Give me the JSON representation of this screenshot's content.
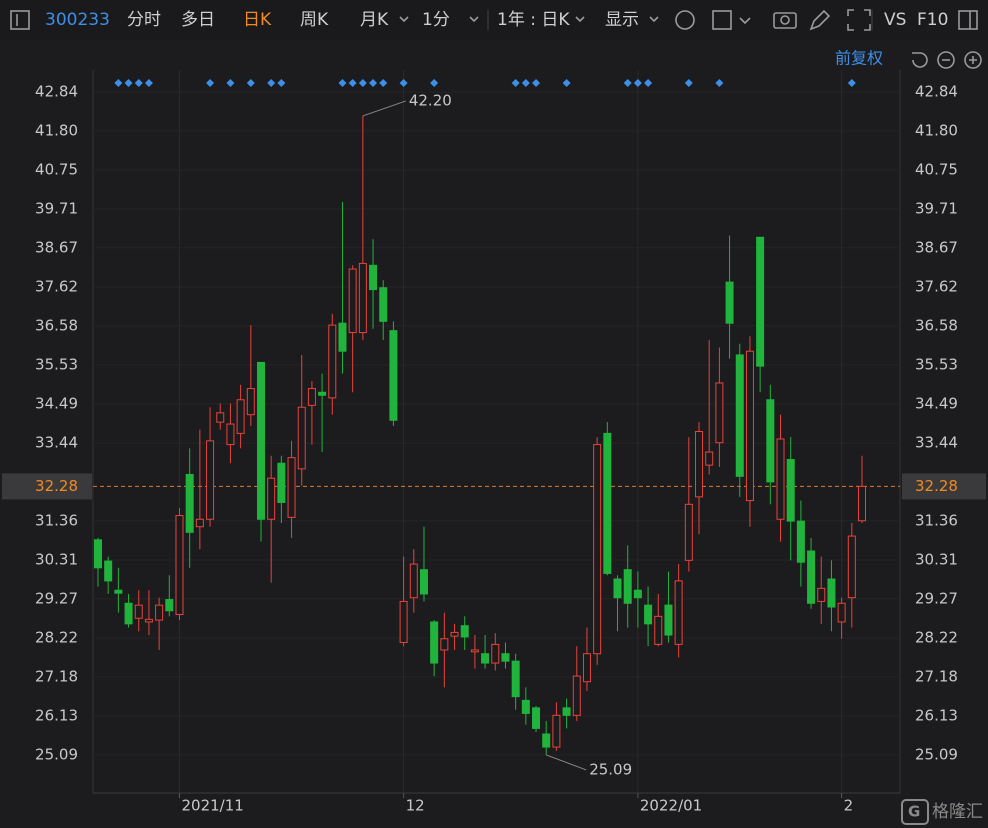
{
  "toolbar": {
    "code": "300233",
    "tabs": [
      "分时",
      "多日",
      "日K",
      "周K",
      "月K",
      "1分",
      "1年 : 日K",
      "显示"
    ],
    "active_tab": 2,
    "right": [
      "VS",
      "F10"
    ],
    "adjust": "前复权",
    "watermark": "格隆汇"
  },
  "chart_data": {
    "type": "candlestick",
    "categories": [
      null,
      null,
      null,
      null,
      null,
      null,
      null,
      null,
      "2021/11",
      null,
      null,
      null,
      null,
      null,
      null,
      null,
      null,
      null,
      null,
      null,
      null,
      null,
      null,
      null,
      null,
      null,
      null,
      null,
      null,
      null,
      "12",
      null,
      null,
      null,
      null,
      null,
      null,
      null,
      null,
      null,
      null,
      null,
      null,
      null,
      null,
      null,
      null,
      null,
      null,
      null,
      null,
      null,
      null,
      "2022/01",
      null,
      null,
      null,
      null,
      null,
      null,
      null,
      null,
      null,
      null,
      null,
      null,
      null,
      null,
      null,
      null,
      null,
      null,
      null,
      "2",
      null,
      null
    ],
    "open": [
      30.85,
      30.28,
      29.5,
      29.15,
      28.75,
      28.65,
      28.7,
      29.25,
      28.85,
      32.6,
      31.2,
      31.4,
      34.0,
      33.4,
      33.7,
      34.2,
      35.6,
      31.4,
      32.9,
      31.45,
      32.75,
      34.45,
      34.8,
      34.65,
      36.65,
      36.4,
      36.4,
      38.2,
      37.6,
      36.45,
      28.1,
      29.3,
      30.05,
      28.65,
      27.9,
      28.27,
      28.55,
      27.85,
      27.8,
      27.55,
      27.8,
      27.6,
      26.55,
      26.35,
      25.65,
      25.3,
      26.35,
      26.15,
      27.05,
      27.8,
      33.7,
      29.8,
      30.05,
      29.5,
      29.1,
      28.05,
      29.1,
      28.05,
      30.3,
      32.0,
      32.85,
      33.45,
      37.75,
      35.8,
      31.9,
      38.95,
      34.6,
      31.4,
      33.0,
      31.35,
      30.55,
      29.2,
      29.8,
      28.65,
      29.3,
      31.36
    ],
    "high": [
      30.9,
      30.4,
      30.1,
      29.4,
      29.5,
      29.5,
      29.3,
      29.9,
      31.7,
      33.3,
      33.8,
      34.4,
      34.5,
      34.5,
      35.0,
      36.6,
      35.6,
      33.1,
      33.1,
      33.5,
      35.8,
      35.1,
      35.3,
      36.9,
      39.9,
      38.2,
      42.2,
      38.9,
      37.8,
      36.7,
      30.4,
      30.6,
      31.2,
      28.7,
      28.9,
      28.6,
      28.8,
      28.3,
      28.3,
      28.35,
      28.1,
      27.8,
      26.9,
      26.4,
      26.0,
      26.5,
      26.6,
      28.0,
      28.5,
      33.6,
      34.0,
      29.9,
      30.7,
      30.0,
      29.6,
      29.4,
      30.0,
      30.2,
      33.6,
      34.0,
      36.2,
      36.0,
      39.0,
      36.1,
      36.3,
      38.95,
      35.0,
      34.2,
      33.6,
      31.9,
      30.9,
      30.4,
      30.3,
      29.3,
      31.3,
      33.1
    ],
    "low": [
      29.6,
      29.4,
      28.9,
      28.5,
      28.4,
      28.3,
      27.9,
      28.8,
      28.7,
      30.1,
      30.6,
      31.2,
      33.8,
      32.9,
      33.3,
      33.9,
      30.8,
      29.7,
      31.3,
      30.9,
      32.3,
      33.4,
      33.2,
      34.2,
      35.3,
      34.8,
      36.2,
      36.5,
      36.2,
      33.9,
      28.0,
      28.9,
      29.2,
      27.2,
      26.9,
      27.9,
      27.9,
      27.4,
      27.4,
      27.35,
      27.4,
      26.3,
      25.9,
      25.7,
      25.09,
      25.2,
      25.8,
      26.0,
      26.8,
      27.5,
      29.9,
      28.4,
      28.5,
      28.5,
      28.0,
      28.0,
      28.1,
      27.7,
      30.0,
      31.0,
      32.6,
      32.8,
      35.7,
      32.0,
      31.2,
      34.8,
      31.8,
      30.8,
      30.3,
      29.6,
      29.0,
      28.6,
      28.4,
      28.2,
      28.5,
      31.3
    ],
    "close": [
      30.1,
      29.75,
      29.42,
      28.6,
      29.1,
      28.72,
      29.1,
      28.95,
      31.5,
      31.05,
      31.4,
      33.5,
      34.25,
      33.95,
      34.6,
      34.9,
      31.4,
      32.5,
      31.85,
      33.05,
      34.4,
      34.9,
      34.72,
      36.6,
      35.9,
      38.1,
      38.25,
      37.55,
      36.7,
      34.05,
      29.2,
      30.2,
      29.4,
      27.55,
      28.2,
      28.37,
      28.25,
      27.9,
      27.55,
      28.05,
      27.6,
      26.65,
      26.2,
      25.8,
      25.3,
      26.15,
      26.15,
      27.2,
      27.8,
      33.4,
      29.95,
      29.3,
      29.15,
      29.3,
      28.6,
      28.8,
      28.3,
      29.75,
      31.8,
      33.75,
      33.2,
      35.05,
      36.65,
      32.55,
      35.9,
      35.5,
      32.4,
      33.55,
      31.35,
      30.25,
      29.15,
      29.55,
      29.05,
      29.15,
      30.95,
      32.28
    ],
    "up_color": "#e8433b",
    "down_color": "#21b43d",
    "ylim": [
      24.07,
      43.43
    ],
    "yticks": [
      25.09,
      26.13,
      27.18,
      28.22,
      29.27,
      30.31,
      31.36,
      33.44,
      34.49,
      35.53,
      36.58,
      37.62,
      38.67,
      39.71,
      40.75,
      {
        "value": 41.8,
        "label": "41.80"
      },
      42.84
    ],
    "grid": true,
    "last_price": {
      "value": 32.28,
      "label": "32.28"
    },
    "annotations": [
      {
        "text": "42.20"
      },
      {
        "text": "25.09"
      }
    ],
    "event_indices": [
      2,
      3,
      4,
      5,
      11,
      13,
      15,
      17,
      18,
      24,
      25,
      26,
      27,
      28,
      30,
      33,
      41,
      42,
      43,
      46,
      52,
      53,
      54,
      58,
      61,
      74
    ],
    "event_color": "#3d8fe8"
  }
}
